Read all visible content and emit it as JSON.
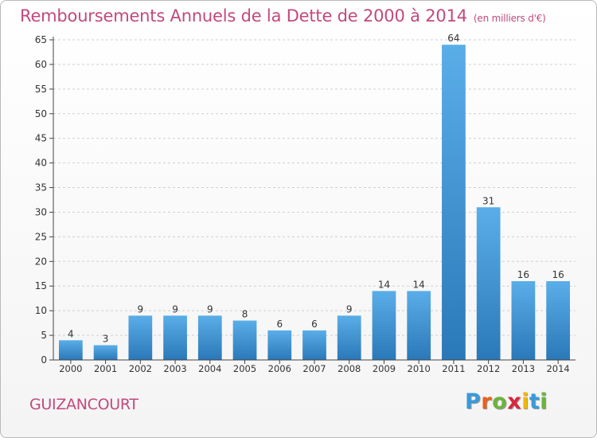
{
  "header": {
    "title": "Remboursements Annuels de la Dette de 2000 à 2014",
    "subtitle": "(en milliers d'€)"
  },
  "footer": {
    "place": "GUIZANCOURT",
    "logo_letters": [
      {
        "ch": "P",
        "color": "#3a9ad9"
      },
      {
        "ch": "r",
        "color": "#e8631d"
      },
      {
        "ch": "o",
        "color": "#6db33f"
      },
      {
        "ch": "x",
        "color": "#d9263f"
      },
      {
        "ch": "i",
        "color": "#f2b705"
      },
      {
        "ch": "t",
        "color": "#3a9ad9"
      },
      {
        "ch": "i",
        "color": "#6db33f"
      }
    ]
  },
  "chart_data": {
    "type": "bar",
    "title": "Remboursements Annuels de la Dette de 2000 à 2014",
    "subtitle": "(en milliers d'€)",
    "categories": [
      "2000",
      "2001",
      "2002",
      "2003",
      "2004",
      "2005",
      "2006",
      "2007",
      "2008",
      "2009",
      "2010",
      "2011",
      "2012",
      "2013",
      "2014"
    ],
    "values": [
      4,
      3,
      9,
      9,
      9,
      8,
      6,
      6,
      9,
      14,
      14,
      64,
      31,
      16,
      16
    ],
    "ylim": [
      0,
      65
    ],
    "yticks": [
      0,
      5,
      10,
      15,
      20,
      25,
      30,
      35,
      40,
      45,
      50,
      55,
      60,
      65
    ],
    "grid": true,
    "colors": {
      "bar_light": "#5aaee8",
      "bar_dark": "#2a78b8",
      "grid": "#d0d0d0",
      "axis": "#444444",
      "title": "#c2497d"
    }
  }
}
